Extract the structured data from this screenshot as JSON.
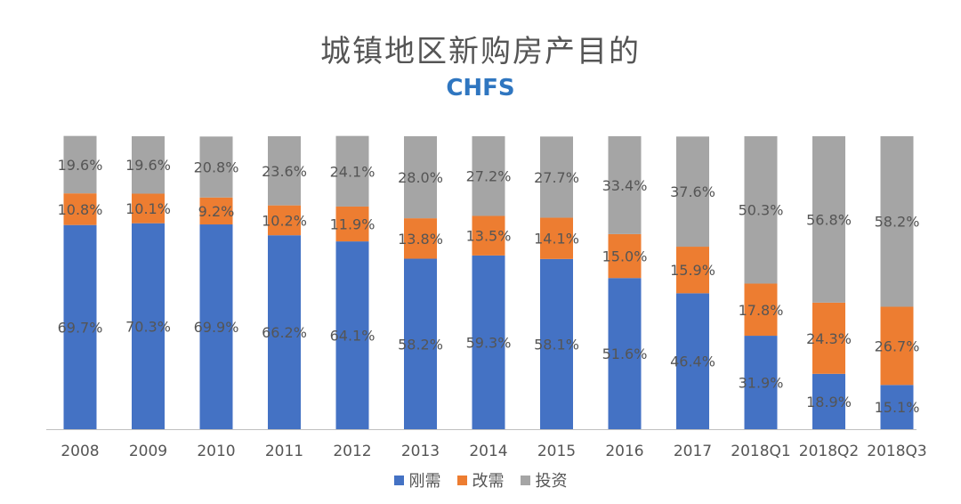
{
  "chart_data": {
    "type": "bar",
    "stacked": true,
    "title": "城镇地区新购房产目的",
    "subtitle": "CHFS",
    "categories": [
      "2008",
      "2009",
      "2010",
      "2011",
      "2012",
      "2013",
      "2014",
      "2015",
      "2016",
      "2017",
      "2018Q1",
      "2018Q2",
      "2018Q3"
    ],
    "series": [
      {
        "name": "刚需",
        "color": "#4472c4",
        "values": [
          69.7,
          70.3,
          69.9,
          66.2,
          64.1,
          58.2,
          59.3,
          58.1,
          51.6,
          46.4,
          31.9,
          18.9,
          15.1
        ],
        "labels": [
          "69.7%",
          "70.3%",
          "69.9%",
          "66.2%",
          "64.1%",
          "58.2%",
          "59.3%",
          "58.1%",
          "51.6%",
          "46.4%",
          "31.9%",
          "18.9%",
          "15.1%"
        ]
      },
      {
        "name": "改需",
        "color": "#ed7d31",
        "values": [
          10.8,
          10.1,
          9.2,
          10.2,
          11.9,
          13.8,
          13.5,
          14.1,
          15.0,
          15.9,
          17.8,
          24.3,
          26.7
        ],
        "labels": [
          "10.8%",
          "10.1%",
          "9.2%",
          "10.2%",
          "11.9%",
          "13.8%",
          "13.5%",
          "14.1%",
          "15.0%",
          "15.9%",
          "17.8%",
          "24.3%",
          "26.7%"
        ]
      },
      {
        "name": "投资",
        "color": "#a5a5a5",
        "values": [
          19.6,
          19.6,
          20.8,
          23.6,
          24.1,
          28.0,
          27.2,
          27.7,
          33.4,
          37.6,
          50.3,
          56.8,
          58.2
        ],
        "labels": [
          "19.6%",
          "19.6%",
          "20.8%",
          "23.6%",
          "24.1%",
          "28.0%",
          "27.2%",
          "27.7%",
          "33.4%",
          "37.6%",
          "50.3%",
          "56.8%",
          "58.2%"
        ]
      }
    ],
    "ylim": [
      0,
      100
    ],
    "grid": false,
    "legend": "bottom"
  }
}
